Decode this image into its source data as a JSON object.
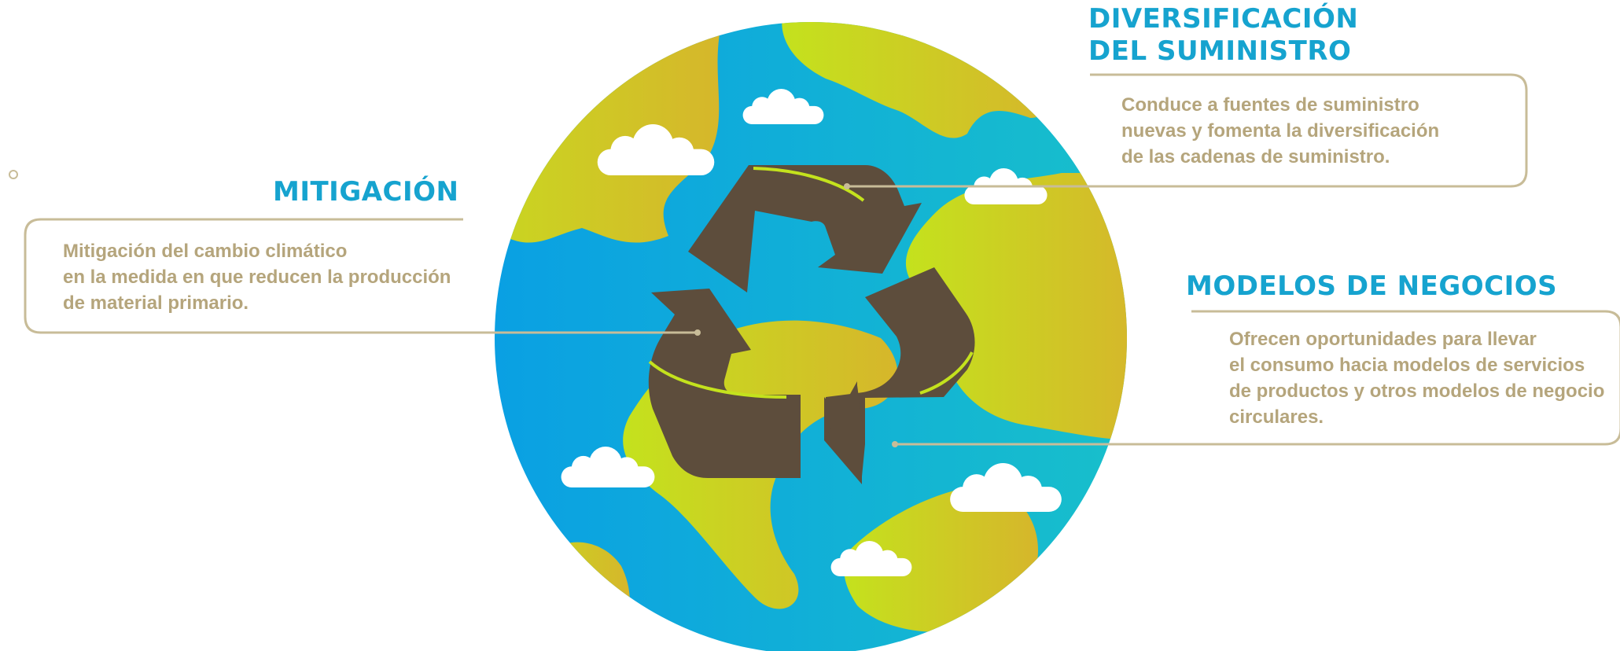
{
  "colors": {
    "heading": "#16a3cf",
    "body_text": "#b5a57c",
    "frame": "#c8bc98",
    "arrows": "#5d4d3c",
    "ocean_left": "#0aa0e3",
    "ocean_right": "#18bfcb",
    "land_light": "#c4e21d",
    "land_dark": "#d6b62b",
    "cloud": "#ffffff"
  },
  "mitigation": {
    "title": "MITIGACIÓN",
    "lines": [
      "Mitigación del cambio climático",
      "en la medida en que reducen la producción",
      "de material primario."
    ]
  },
  "supply": {
    "title_lines": [
      "DIVERSIFICACIÓN",
      "DEL SUMINISTRO"
    ],
    "lines": [
      "Conduce a fuentes de suministro",
      "nuevas y fomenta la diversificación",
      "de las cadenas de suministro."
    ]
  },
  "business": {
    "title": "MODELOS DE NEGOCIOS",
    "lines": [
      "Ofrecen oportunidades para llevar",
      "el consumo hacia modelos de servicios",
      "de productos y otros modelos de negocio",
      "circulares."
    ]
  },
  "globe": {
    "icon": "recycling-globe-icon",
    "clouds": [
      "cloud-icon",
      "cloud-icon",
      "cloud-icon",
      "cloud-icon",
      "cloud-icon",
      "cloud-icon",
      "cloud-icon"
    ]
  }
}
